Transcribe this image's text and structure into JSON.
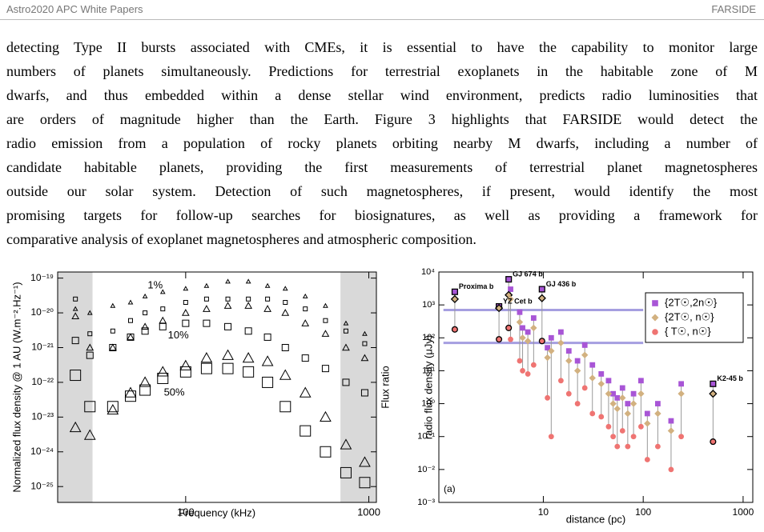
{
  "header": {
    "left": "Astro2020 APC White Papers",
    "right": "FARSIDE"
  },
  "body": {
    "lines": [
      "detecting Type II bursts associated with CMEs, it is essential to have the capability to monitor large",
      "numbers of planets simultaneously. Predictions for terrestrial exoplanets in the habitable zone of M",
      "dwarfs, and thus embedded within a dense stellar wind environment, predicts radio luminosities that",
      "are orders of magnitude higher than the Earth. Figure 3 highlights that FARSIDE would detect the",
      "radio emission from a population of rocky planets orbiting nearby M dwarfs, including a number of",
      "candidate habitable planets, providing the first measurements of terrestrial planet magnetospheres",
      "outside our solar system. Detection of such magnetospheres, if present, would identify the most",
      "promising targets for follow-up searches for biosignatures, as well as providing a framework for",
      "comparative analysis of exoplanet magnetospheres and atmospheric composition."
    ]
  },
  "chart_data": [
    {
      "type": "scatter",
      "xlabel": "Frequency (kHz)",
      "ylabel": "Normalized flux density @ 1 AU (W.m⁻².Hz⁻¹)",
      "y2label": "Flux ratio",
      "xscale": "log",
      "yscale": "log",
      "xlim": [
        20,
        1100
      ],
      "ylim": [
        3.5e-26,
        1.5e-19
      ],
      "xticks": [
        100,
        1000
      ],
      "yticks": [
        {
          "value": 1e-19,
          "label": "10⁻¹⁹"
        },
        {
          "value": 1e-20,
          "label": "10⁻²⁰"
        },
        {
          "value": 1e-21,
          "label": "10⁻²¹"
        },
        {
          "value": 1e-22,
          "label": "10⁻²²"
        },
        {
          "value": 1e-23,
          "label": "10⁻²³"
        },
        {
          "value": 1e-24,
          "label": "10⁻²⁴"
        },
        {
          "value": 1e-25,
          "label": "10⁻²⁵"
        }
      ],
      "shaded_regions": [
        [
          20,
          31
        ],
        [
          700,
          1100
        ]
      ],
      "x": [
        25,
        30,
        40,
        50,
        60,
        75,
        100,
        130,
        170,
        220,
        280,
        350,
        450,
        580,
        750,
        950
      ],
      "series": [
        {
          "marker": "triangle",
          "color": "#000000",
          "values": [
            1.3e-20,
            1e-20,
            1.6e-20,
            2e-20,
            3e-20,
            4e-20,
            5e-20,
            6e-20,
            8e-20,
            8e-20,
            6e-20,
            5e-20,
            3e-20,
            1.6e-20,
            5e-21,
            2.5e-21
          ]
        },
        {
          "marker": "square",
          "color": "#000000",
          "values": [
            2.5e-20,
            2.5e-21,
            3e-21,
            6e-21,
            1e-20,
            1.3e-20,
            2e-20,
            2.5e-20,
            2.5e-20,
            2.5e-20,
            2.5e-20,
            2e-20,
            1.3e-20,
            6e-21,
            3e-21,
            1.3e-21
          ]
        },
        {
          "marker": "triangle",
          "color": "#000000",
          "values": [
            8e-21,
            1e-21,
            1e-21,
            2e-21,
            4e-21,
            6e-21,
            1e-20,
            1.3e-20,
            1.6e-20,
            1.6e-20,
            1.3e-20,
            1e-20,
            5e-21,
            2.5e-21,
            1e-21,
            5e-22
          ]
        },
        {
          "marker": "square",
          "color": "#000000",
          "values": [
            1.6e-21,
            6e-22,
            1e-21,
            2e-21,
            3e-21,
            4e-21,
            5e-21,
            5e-21,
            4e-21,
            3e-21,
            2e-21,
            1e-21,
            5e-22,
            2.5e-22,
            1e-22,
            5e-23
          ]
        },
        {
          "marker": "triangle",
          "color": "#000000",
          "values": [
            5e-24,
            3e-24,
            1.6e-23,
            5e-23,
            1e-22,
            2e-22,
            3e-22,
            5e-22,
            6e-22,
            5e-22,
            4e-22,
            1.6e-22,
            5e-23,
            1e-23,
            1.6e-24,
            5e-25
          ]
        },
        {
          "marker": "square",
          "color": "#000000",
          "values": [
            1.6e-22,
            2e-23,
            2e-23,
            4e-23,
            6e-23,
            1.3e-22,
            2e-22,
            2.5e-22,
            2.5e-22,
            2e-22,
            1e-22,
            2e-23,
            4e-24,
            1e-24,
            2.5e-25,
            1.3e-25
          ]
        }
      ],
      "annotations": [
        {
          "text": "1%",
          "x": 62,
          "y": 6e-20
        },
        {
          "text": "10%",
          "x": 80,
          "y": 2.2e-21
        },
        {
          "text": "50%",
          "x": 76,
          "y": 5e-23
        }
      ]
    },
    {
      "type": "scatter",
      "xlabel": "distance (pc)",
      "ylabel": "radio flux density (μJy)",
      "xscale": "log",
      "yscale": "log",
      "xlim": [
        0.9,
        1250
      ],
      "ylim": [
        0.001,
        10000
      ],
      "xticks": [
        10,
        100,
        1000
      ],
      "yticks": [
        {
          "value": 10000,
          "label": "10⁴"
        },
        {
          "value": 1000,
          "label": "10³"
        },
        {
          "value": 100,
          "label": "10²"
        },
        {
          "value": 10,
          "label": "10¹"
        },
        {
          "value": 1,
          "label": "10⁰"
        },
        {
          "value": 0.1,
          "label": "10⁻¹"
        },
        {
          "value": 0.01,
          "label": "10⁻²"
        },
        {
          "value": 0.001,
          "label": "10⁻³"
        }
      ],
      "legend": "upper right",
      "hlines": [
        {
          "value": 700,
          "x": [
            1,
            100
          ],
          "color": "#8f86d9"
        },
        {
          "value": 70,
          "x": [
            1,
            100
          ],
          "color": "#8f86d9"
        }
      ],
      "x": [
        1.3,
        3.6,
        4.5,
        4.7,
        5.8,
        6.2,
        7.0,
        8.0,
        9.7,
        11,
        12,
        15,
        18,
        22,
        26,
        31,
        38,
        45,
        50,
        55,
        62,
        70,
        80,
        95,
        110,
        140,
        190,
        240,
        500
      ],
      "series": [
        {
          "name": "{2T☉,2n☉}",
          "marker": "square",
          "color": "#a855d6",
          "values": [
            2500,
            900,
            6000,
            3000,
            600,
            200,
            150,
            400,
            3000,
            50,
            100,
            150,
            40,
            20,
            60,
            15,
            8,
            5,
            2,
            1.5,
            3,
            1,
            2,
            5,
            0.5,
            1,
            0.3,
            4,
            4
          ]
        },
        {
          "name": "{2T☉, n☉}",
          "marker": "diamond",
          "color": "#d2b180",
          "values": [
            1500,
            800,
            2000,
            1500,
            300,
            100,
            80,
            200,
            1600,
            25,
            40,
            70,
            20,
            10,
            30,
            6,
            4,
            2,
            1,
            0.7,
            1.5,
            0.5,
            1,
            2,
            0.25,
            0.5,
            0.15,
            2,
            2
          ]
        },
        {
          "name": "{ T☉, n☉}",
          "marker": "circle",
          "color": "#ef7472",
          "values": [
            180,
            90,
            200,
            90,
            20,
            10,
            8,
            15,
            80,
            1.5,
            0.1,
            5,
            2,
            1,
            3,
            0.5,
            0.4,
            0.2,
            0.1,
            0.05,
            0.15,
            0.05,
            0.1,
            0.2,
            0.02,
            0.05,
            0.01,
            0.1,
            0.07
          ]
        }
      ],
      "annotations": [
        {
          "text": "Proxima b",
          "x": 1.3,
          "y": 2500
        },
        {
          "text": "GJ 674 b",
          "x": 4.5,
          "y": 6000
        },
        {
          "text": "YZ Cet b",
          "x": 3.6,
          "y": 900
        },
        {
          "text": "GJ 436 b",
          "x": 9.7,
          "y": 3000
        },
        {
          "text": "K2-45 b",
          "x": 500,
          "y": 4
        }
      ],
      "panel_label": "(a)"
    }
  ]
}
